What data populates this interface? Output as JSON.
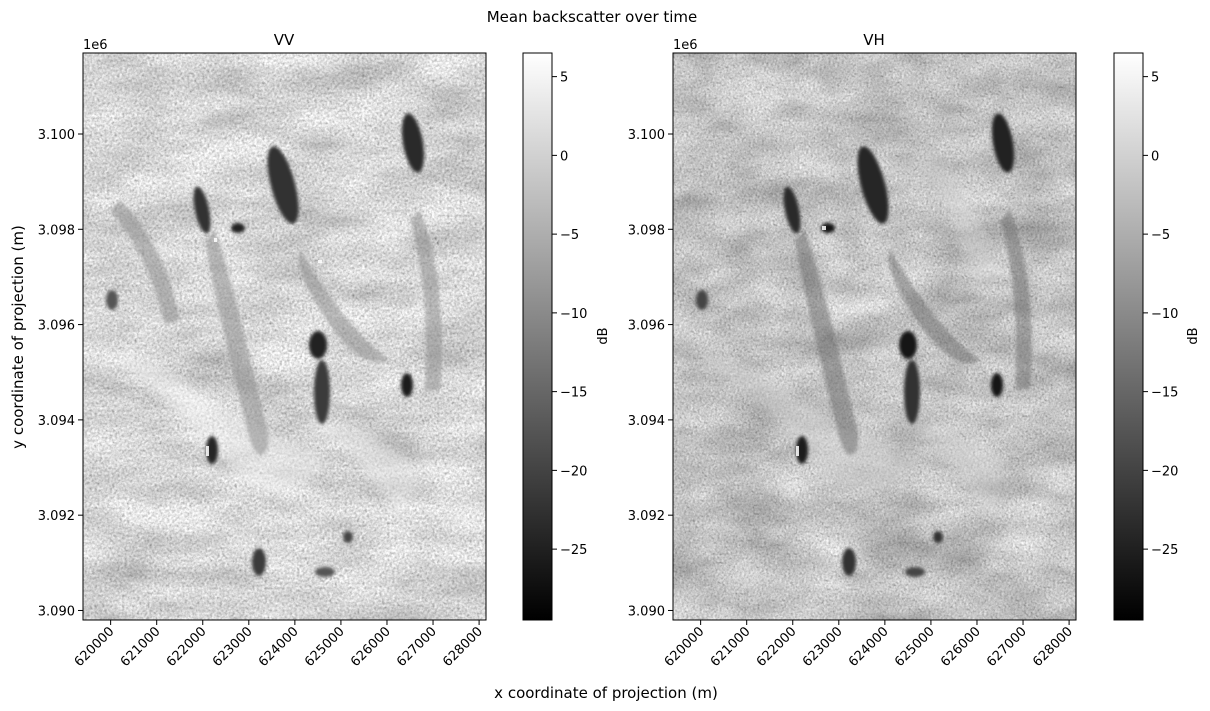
{
  "figure": {
    "suptitle": "Mean backscatter over time",
    "xlabel": "x coordinate of projection (m)",
    "ylabel": "y coordinate of projection (m)"
  },
  "chart_data": [
    {
      "type": "heatmap",
      "title": "VV",
      "colormap": "gray",
      "xlim": [
        619400,
        628150
      ],
      "ylim": [
        3089800,
        3101700
      ],
      "xticks": [
        620000,
        621000,
        622000,
        623000,
        624000,
        625000,
        626000,
        627000,
        628000
      ],
      "xtick_labels": [
        "620000",
        "621000",
        "622000",
        "623000",
        "624000",
        "625000",
        "626000",
        "627000",
        "628000"
      ],
      "yticks": [
        3.09,
        3.092,
        3.094,
        3.096,
        3.098,
        3.1
      ],
      "ytick_labels": [
        "3.090",
        "3.092",
        "3.094",
        "3.096",
        "3.098",
        "3.100"
      ],
      "y_offset_label": "1e6",
      "colorbar": {
        "label": "dB",
        "range": [
          -29.5,
          6.5
        ],
        "ticks": [
          5,
          0,
          -5,
          -10,
          -15,
          -20,
          -25
        ],
        "tick_labels": [
          "5",
          "0",
          "−5",
          "−10",
          "−15",
          "−20",
          "−25"
        ]
      }
    },
    {
      "type": "heatmap",
      "title": "VH",
      "colormap": "gray",
      "xlim": [
        619400,
        628150
      ],
      "ylim": [
        3089800,
        3101700
      ],
      "xticks": [
        620000,
        621000,
        622000,
        623000,
        624000,
        625000,
        626000,
        627000,
        628000
      ],
      "xtick_labels": [
        "620000",
        "621000",
        "622000",
        "623000",
        "624000",
        "625000",
        "626000",
        "627000",
        "628000"
      ],
      "yticks": [
        3.09,
        3.092,
        3.094,
        3.096,
        3.098,
        3.1
      ],
      "ytick_labels": [
        "3.090",
        "3.092",
        "3.094",
        "3.096",
        "3.098",
        "3.100"
      ],
      "y_offset_label": "1e6",
      "colorbar": {
        "label": "dB",
        "range": [
          -29.5,
          6.5
        ],
        "ticks": [
          5,
          0,
          -5,
          -10,
          -15,
          -20,
          -25
        ],
        "tick_labels": [
          "5",
          "0",
          "−5",
          "−10",
          "−15",
          "−20",
          "−25"
        ]
      }
    }
  ]
}
